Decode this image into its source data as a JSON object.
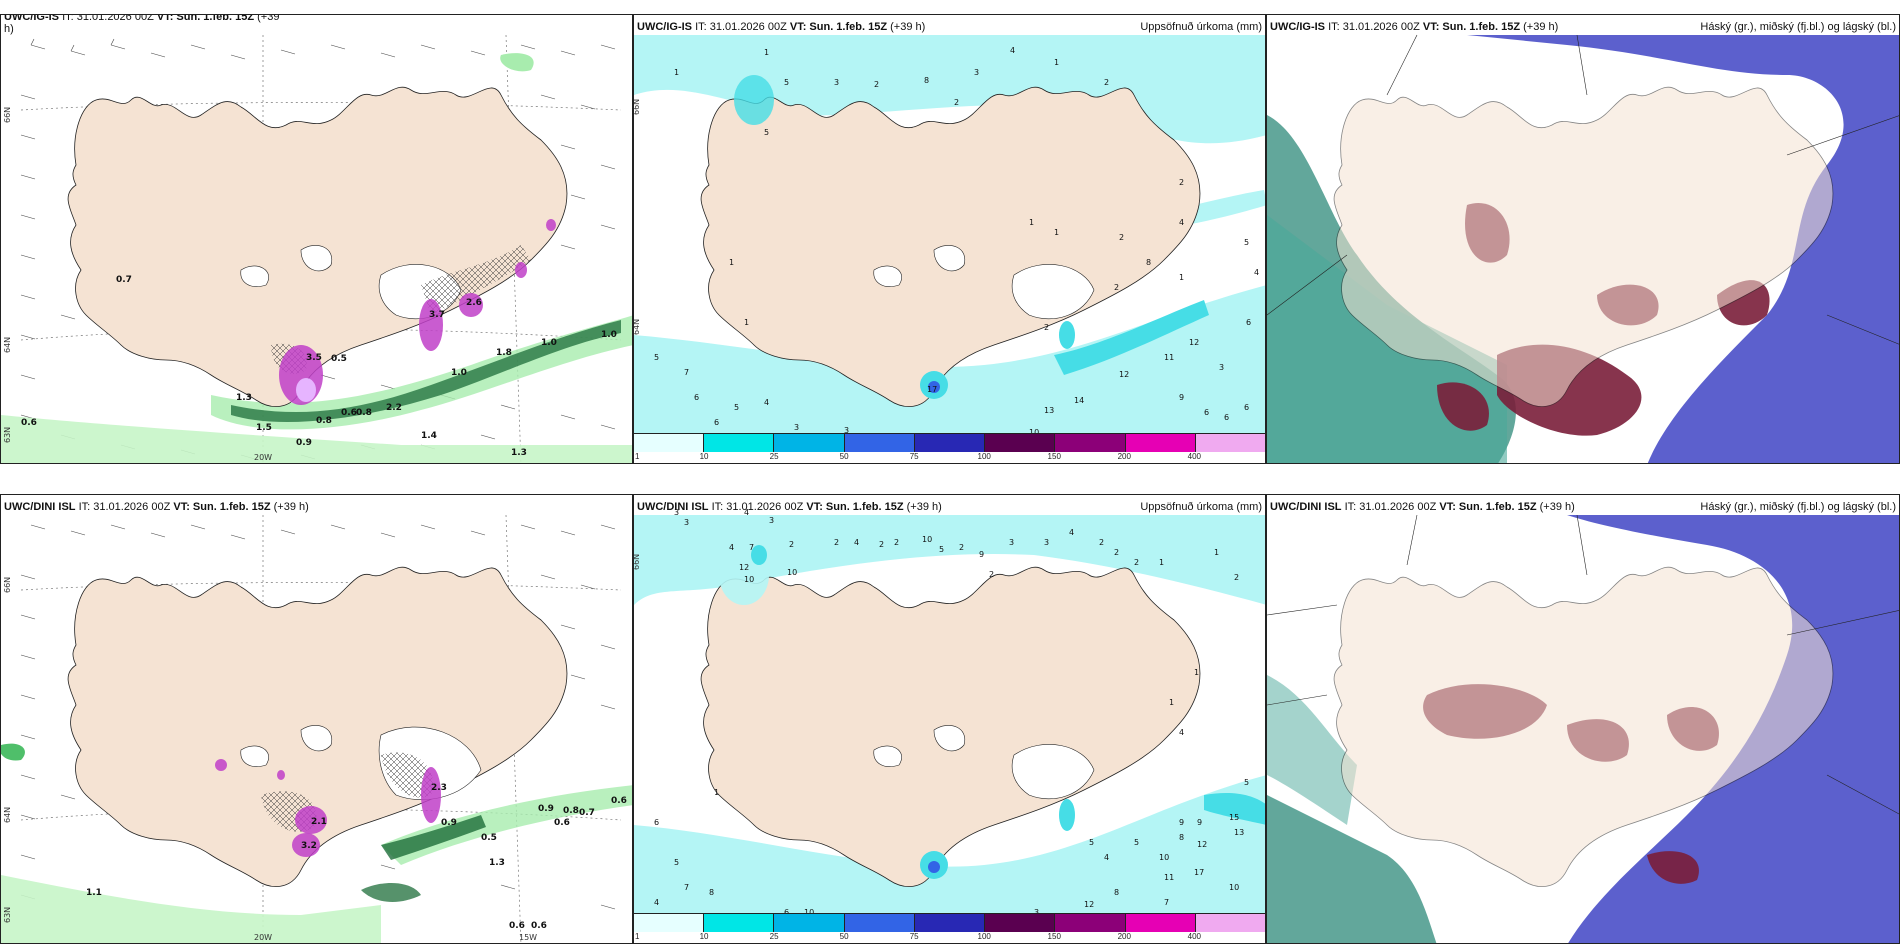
{
  "panels": {
    "p1": {
      "title_model": "UWC/IG-IS",
      "title_it": "IT: 31.01.2026 00Z",
      "title_vt": "VT: Sun. 1.feb. 15Z",
      "title_h": "(+39",
      "title_h2": "h)"
    },
    "p2": {
      "title_model": "UWC/IG-IS",
      "title_it": "IT: 31.01.2026 00Z",
      "title_vt": "VT: Sun. 1.feb. 15Z",
      "title_h": "(+39 h)",
      "right": "Uppsöfnuð úrkoma (mm)"
    },
    "p3": {
      "title_model": "UWC/IG-IS",
      "title_it": "IT: 31.01.2026 00Z",
      "title_vt": "VT: Sun. 1.feb. 15Z",
      "title_h": "(+39 h)",
      "right": "Háský (gr.), miðský (fj.bl.) og lágský (bl.)"
    },
    "p4": {
      "title_model": "UWC/DINI ISL",
      "title_it": "IT: 31.01.2026 00Z",
      "title_vt": "VT: Sun. 1.feb. 15Z",
      "title_h": "(+39 h)"
    },
    "p5": {
      "title_model": "UWC/DINI ISL",
      "title_it": "IT: 31.01.2026 00Z",
      "title_vt": "VT: Sun. 1.feb. 15Z",
      "title_h": "(+39 h)",
      "right": "Uppsöfnuð úrkoma (mm)"
    },
    "p6": {
      "title_model": "UWC/DINI ISL",
      "title_it": "IT: 31.01.2026 00Z",
      "title_vt": "VT: Sun. 1.feb. 15Z",
      "title_h": "(+39 h)",
      "right": "Háský (gr.), miðský (fj.bl.) og lágský (bl.)"
    }
  },
  "axis_labels": {
    "n66": "66N",
    "n64": "64N",
    "n63": "63N",
    "w20": "20W",
    "w15": "15W"
  },
  "colorbar": {
    "labels": [
      "1",
      "10",
      "25",
      "50",
      "75",
      "100",
      "150",
      "200",
      "400"
    ],
    "colors": [
      "#e6ffff",
      "#00e6e6",
      "#00b4e6",
      "#3264e6",
      "#2828b4",
      "#5a0050",
      "#8c0078",
      "#e600b4",
      "#f0aaf0"
    ]
  },
  "map_values": {
    "p1": [
      "0.7",
      "3.5",
      "0.5",
      "1.0",
      "1.0",
      "1.8",
      "1.0",
      "2.2",
      "0.6",
      "0.8",
      "0.9",
      "1.4",
      "0.8",
      "0.6",
      "1.3",
      "1.3",
      "3.7",
      "2.6",
      "1.5"
    ],
    "p2": [
      "1",
      "1",
      "5",
      "3",
      "2",
      "8",
      "3",
      "4",
      "1",
      "2",
      "2",
      "1",
      "1",
      "2",
      "2",
      "5",
      "4",
      "4",
      "6",
      "6",
      "8",
      "2",
      "1",
      "2",
      "12",
      "11",
      "12",
      "14",
      "13",
      "10",
      "3",
      "9",
      "6",
      "6",
      "5",
      "7",
      "6",
      "5",
      "4",
      "3",
      "6",
      "1",
      "1",
      "17",
      "3",
      "5"
    ],
    "p4": [
      "1.1",
      "2.1",
      "3.2",
      "0.5",
      "1.3",
      "0.9",
      "0.8",
      "0.7",
      "0.6",
      "0.6",
      "0.6",
      "0.9",
      "2.3",
      "0.6"
    ],
    "p5": [
      "3",
      "3",
      "4",
      "3",
      "2",
      "4",
      "7",
      "12",
      "10",
      "10",
      "2",
      "4",
      "2",
      "2",
      "10",
      "5",
      "2",
      "9",
      "3",
      "2",
      "3",
      "4",
      "2",
      "2",
      "2",
      "1",
      "1",
      "2",
      "1",
      "1",
      "4",
      "5",
      "5",
      "9",
      "9",
      "8",
      "10",
      "15",
      "13",
      "12",
      "11",
      "17",
      "10",
      "7",
      "8",
      "12",
      "5",
      "4",
      "3",
      "6",
      "10",
      "5",
      "6",
      "7",
      "8",
      "4",
      "1"
    ]
  },
  "colors": {
    "land": "#f5e3d3",
    "sea_precip_light": "#b4f5f5",
    "sea_precip_mid": "#46dde6",
    "wind_green": "#1e6e3a",
    "wind_light": "#a8ecae",
    "purple": "#c040c8",
    "cloud_blue": "#4a4fc8",
    "cloud_maroon": "#7a1e3a",
    "cloud_teal": "#2e8a7a"
  }
}
